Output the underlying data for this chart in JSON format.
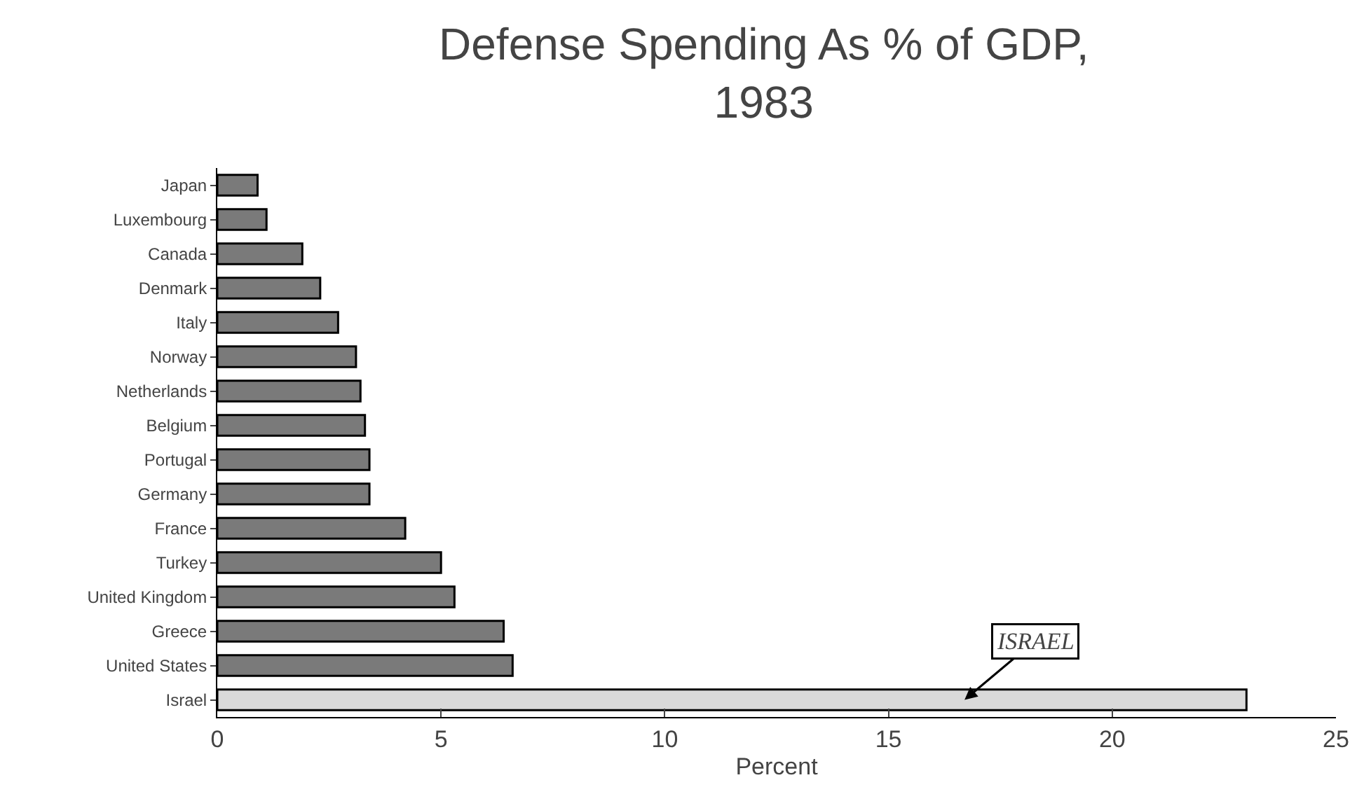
{
  "chart_data": {
    "type": "bar",
    "orientation": "horizontal",
    "title": "Defense Spending As % of GDP,\n1983",
    "xlabel": "Percent",
    "categories": [
      "Japan",
      "Luxembourg",
      "Canada",
      "Denmark",
      "Italy",
      "Norway",
      "Netherlands",
      "Belgium",
      "Portugal",
      "Germany",
      "France",
      "Turkey",
      "United Kingdom",
      "Greece",
      "United States",
      "Israel"
    ],
    "values": [
      0.9,
      1.1,
      1.9,
      2.3,
      2.7,
      3.1,
      3.2,
      3.3,
      3.4,
      3.4,
      4.2,
      5.0,
      5.3,
      6.4,
      6.6,
      23.0
    ],
    "colors": [
      "#7a7a7a",
      "#7a7a7a",
      "#7a7a7a",
      "#7a7a7a",
      "#7a7a7a",
      "#7a7a7a",
      "#7a7a7a",
      "#7a7a7a",
      "#7a7a7a",
      "#7a7a7a",
      "#7a7a7a",
      "#7a7a7a",
      "#7a7a7a",
      "#7a7a7a",
      "#7a7a7a",
      "#d9d9d9"
    ],
    "xlim": [
      0,
      25
    ],
    "xticks": [
      0,
      5,
      10,
      15,
      20,
      25
    ],
    "grid": false,
    "annotations": [
      {
        "text": "ISRAEL",
        "x": 16.7,
        "y": "Israel"
      }
    ]
  }
}
